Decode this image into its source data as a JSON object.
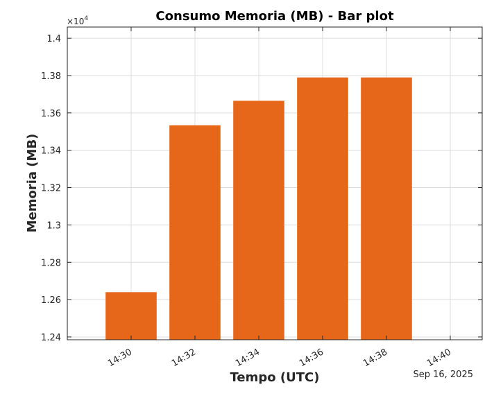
{
  "chart_data": {
    "type": "bar",
    "title": "Consumo Memoria (MB) - Bar plot",
    "xlabel": "Tempo (UTC)",
    "ylabel": "Memoria (MB)",
    "y_exponent_label": "×10",
    "y_exponent_power": "4",
    "date_label": "Sep 16, 2025",
    "x_ticks": [
      "14:30",
      "14:32",
      "14:34",
      "14:36",
      "14:38",
      "14:40"
    ],
    "y_ticks": [
      "1.24",
      "1.26",
      "1.28",
      "1.3",
      "1.32",
      "1.34",
      "1.36",
      "1.38",
      "1.4"
    ],
    "x_range_minutes": [
      "14:28",
      "14:41"
    ],
    "ylim": [
      12385,
      14060
    ],
    "grid": true,
    "bars": [
      {
        "time": "14:30",
        "value": 12640
      },
      {
        "time": "14:32",
        "value": 13534
      },
      {
        "time": "14:34",
        "value": 13665
      },
      {
        "time": "14:36",
        "value": 13790
      },
      {
        "time": "14:38",
        "value": 13790
      }
    ],
    "bar_width_minutes": 1.6,
    "colors": {
      "bar": "#e6661a",
      "axis": "#262626",
      "grid": "#dcdcdc"
    }
  }
}
